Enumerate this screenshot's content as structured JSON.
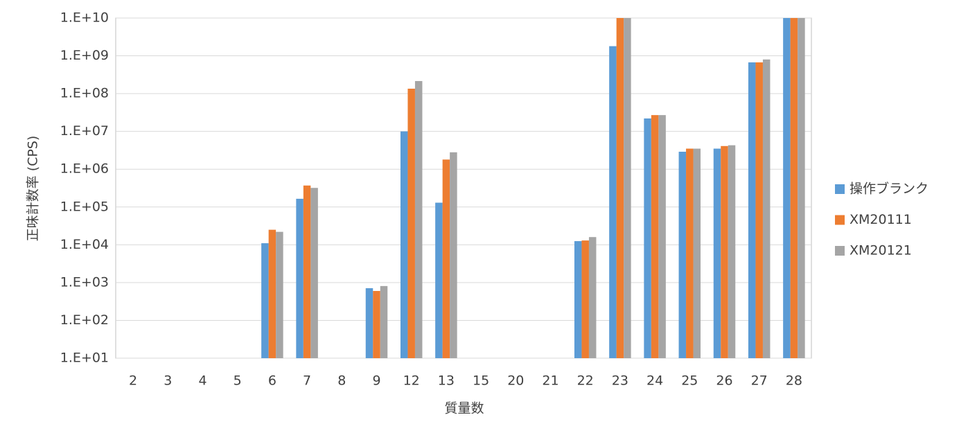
{
  "chart_data": {
    "type": "bar",
    "log_scale": true,
    "grid": true,
    "legend": "right",
    "xlabel": "質量数",
    "ylabel": "正味計数率 (CPS)",
    "categories": [
      "2",
      "3",
      "4",
      "5",
      "6",
      "7",
      "8",
      "9",
      "12",
      "13",
      "15",
      "20",
      "21",
      "22",
      "23",
      "24",
      "25",
      "26",
      "27",
      "28"
    ],
    "ylim": [
      10,
      10000000000
    ],
    "yticks": [
      {
        "value": 10,
        "label": "1.E+01"
      },
      {
        "value": 100,
        "label": "1.E+02"
      },
      {
        "value": 1000,
        "label": "1.E+03"
      },
      {
        "value": 10000,
        "label": "1.E+04"
      },
      {
        "value": 100000,
        "label": "1.E+05"
      },
      {
        "value": 1000000,
        "label": "1.E+06"
      },
      {
        "value": 10000000,
        "label": "1.E+07"
      },
      {
        "value": 100000000,
        "label": "1.E+08"
      },
      {
        "value": 1000000000,
        "label": "1.E+09"
      },
      {
        "value": 10000000000,
        "label": "1.E+10"
      }
    ],
    "series": [
      {
        "name": "操作ブランク",
        "color": "#5b9bd5",
        "values": [
          null,
          null,
          null,
          null,
          11000,
          165000,
          null,
          710,
          10000000,
          130000,
          null,
          null,
          null,
          12500,
          1800000000,
          22000000,
          2900000,
          3500000,
          670000000,
          10000000000
        ]
      },
      {
        "name": "XM20111",
        "color": "#ed7d31",
        "values": [
          null,
          null,
          null,
          null,
          25000,
          370000,
          null,
          600,
          135000000,
          1800000,
          null,
          null,
          null,
          13000,
          10000000000,
          27000000,
          3500000,
          4100000,
          670000000,
          10000000000
        ]
      },
      {
        "name": "XM20121",
        "color": "#a5a5a5",
        "values": [
          null,
          null,
          null,
          null,
          22000,
          320000,
          null,
          810,
          215000000,
          2800000,
          null,
          null,
          null,
          16000,
          10000000000,
          27000000,
          3500000,
          4300000,
          800000000,
          10000000000
        ]
      }
    ]
  }
}
